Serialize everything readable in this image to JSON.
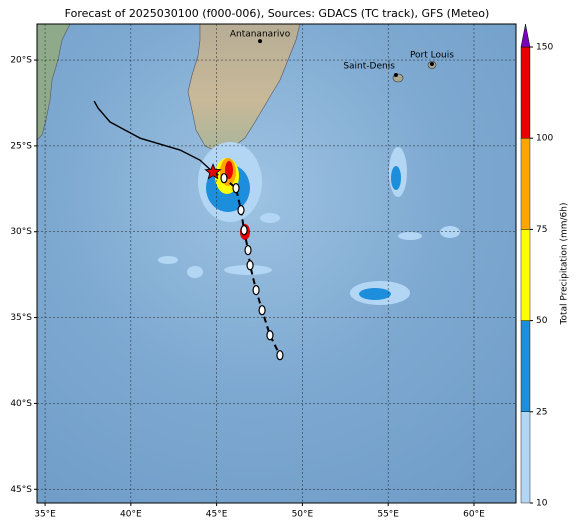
{
  "map": {
    "title": "Forecast of 2025030100 (f000-006), Sources: GDACS (TC track), GFS (Meteo)",
    "xlim": [
      34.53,
      62.45
    ],
    "ylim": [
      -45.8,
      -17.9
    ],
    "xticks": [
      {
        "value": 35,
        "label": "35°E"
      },
      {
        "value": 40,
        "label": "40°E"
      },
      {
        "value": 45,
        "label": "45°E"
      },
      {
        "value": 50,
        "label": "50°E"
      },
      {
        "value": 55,
        "label": "55°E"
      },
      {
        "value": 60,
        "label": "60°E"
      }
    ],
    "yticks": [
      {
        "value": -20,
        "label": "20°S"
      },
      {
        "value": -25,
        "label": "25°S"
      },
      {
        "value": -30,
        "label": "30°S"
      },
      {
        "value": -35,
        "label": "35°S"
      },
      {
        "value": -40,
        "label": "40°S"
      },
      {
        "value": -45,
        "label": "45°S"
      }
    ],
    "grid": true,
    "cities": [
      {
        "name": "Antananarivo",
        "lon": 47.53,
        "lat": -18.9
      },
      {
        "name": "Port Louis",
        "lon": 57.55,
        "lat": -20.23
      },
      {
        "name": "Saint-Denis",
        "lon": 55.45,
        "lat": -20.87
      }
    ],
    "track_observed": {
      "lon": [
        37.86,
        38.09,
        38.79,
        40.54,
        42.87,
        44.03,
        44.79
      ],
      "lat": [
        -22.39,
        -22.8,
        -23.61,
        -24.55,
        -25.24,
        -25.83,
        -26.53
      ]
    },
    "track_forecast": {
      "lon": [
        44.79,
        45.43,
        46.13,
        46.42,
        46.6,
        46.83,
        46.95,
        47.3,
        47.65,
        48.11,
        48.69
      ],
      "lat": [
        -26.53,
        -26.88,
        -27.46,
        -28.74,
        -29.91,
        -31.07,
        -31.95,
        -33.4,
        -34.57,
        -36.03,
        -37.19
      ]
    },
    "colorbar": {
      "label": "Total Precipitation (mm/6h)",
      "ticks": [
        10,
        25,
        50,
        75,
        100,
        150
      ],
      "colors": [
        "#b3d6f5",
        "#1c8edb",
        "#ffff00",
        "#ffa500",
        "#e60000"
      ],
      "extend_color": "#7a00c0"
    }
  }
}
